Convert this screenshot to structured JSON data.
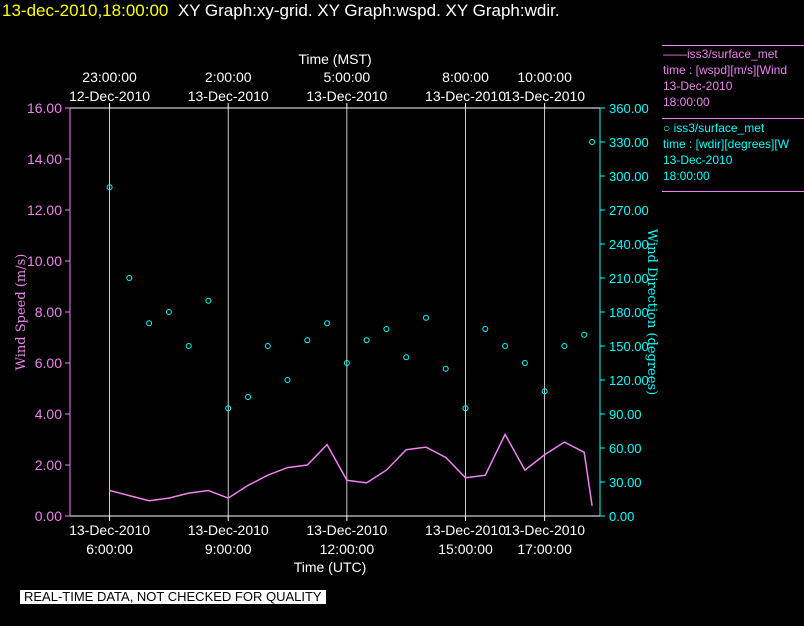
{
  "header": {
    "timestamp": "13-dec-2010,18:00:00",
    "graphs": "XY Graph:xy-grid.  XY Graph:wspd.  XY Graph:wdir."
  },
  "legend": {
    "wspd": {
      "line1": "——iss3/surface_met",
      "line2": "time : [wspd][m/s][Wind",
      "line3": "13-Dec-2010",
      "line4": "18:00:00"
    },
    "wdir": {
      "line1": "○ iss3/surface_met",
      "line2": "time : [wdir][degrees][W",
      "line3": "13-Dec-2010",
      "line4": "18:00:00"
    }
  },
  "footer_note": "REAL-TIME DATA, NOT CHECKED FOR QUALITY",
  "colors": {
    "wspd": "#ee82ee",
    "wdir": "#00ffff",
    "grid": "#ffffff",
    "timestamp": "#ffff00"
  },
  "chart_data": {
    "type": "line",
    "x_units": "hours UTC on 13-Dec-2010",
    "xlim": [
      5.0,
      18.4
    ],
    "top_axis": {
      "label": "Time (MST)",
      "ticks": [
        {
          "x": 6.0,
          "time": "23:00:00",
          "date": "12-Dec-2010"
        },
        {
          "x": 9.0,
          "time": "2:00:00",
          "date": "13-Dec-2010"
        },
        {
          "x": 12.0,
          "time": "5:00:00",
          "date": "13-Dec-2010"
        },
        {
          "x": 15.0,
          "time": "8:00:00",
          "date": "13-Dec-2010"
        },
        {
          "x": 17.0,
          "time": "10:00:00",
          "date": "13-Dec-2010"
        }
      ]
    },
    "bottom_axis": {
      "label": "Time (UTC)",
      "ticks": [
        {
          "x": 6.0,
          "date": "13-Dec-2010",
          "time": "6:00:00"
        },
        {
          "x": 9.0,
          "date": "13-Dec-2010",
          "time": "9:00:00"
        },
        {
          "x": 12.0,
          "date": "13-Dec-2010",
          "time": "12:00:00"
        },
        {
          "x": 15.0,
          "date": "13-Dec-2010",
          "time": "15:00:00"
        },
        {
          "x": 17.0,
          "date": "13-Dec-2010",
          "time": "17:00:00"
        }
      ]
    },
    "left_axis": {
      "label": "Wind Speed (m/s)",
      "ylim": [
        0,
        16
      ],
      "ticks": [
        "0.00",
        "2.00",
        "4.00",
        "6.00",
        "8.00",
        "10.00",
        "12.00",
        "14.00",
        "16.00"
      ]
    },
    "right_axis": {
      "label": "Wind Direction (degrees)",
      "ylim": [
        0,
        360
      ],
      "ticks": [
        "0.00",
        "30.00",
        "60.00",
        "90.00",
        "120.00",
        "150.00",
        "180.00",
        "210.00",
        "240.00",
        "270.00",
        "300.00",
        "330.00",
        "360.00"
      ]
    },
    "grid": true,
    "legend_position": "right",
    "series": [
      {
        "name": "iss3/surface_met time : [wspd][m/s]",
        "axis": "left",
        "style": "line",
        "x": [
          6.0,
          6.5,
          7.0,
          7.5,
          8.0,
          8.5,
          9.0,
          9.5,
          10.0,
          10.5,
          11.0,
          11.5,
          12.0,
          12.5,
          13.0,
          13.5,
          14.0,
          14.5,
          15.0,
          15.5,
          16.0,
          16.5,
          17.0,
          17.5,
          18.0,
          18.2
        ],
        "y": [
          1.0,
          0.8,
          0.6,
          0.7,
          0.9,
          1.0,
          0.7,
          1.2,
          1.6,
          1.9,
          2.0,
          2.8,
          1.4,
          1.3,
          1.8,
          2.6,
          2.7,
          2.3,
          1.5,
          1.6,
          3.2,
          1.8,
          2.4,
          2.9,
          2.5,
          0.4
        ]
      },
      {
        "name": "iss3/surface_met time : [wdir][degrees]",
        "axis": "right",
        "style": "markers",
        "x": [
          6.0,
          6.5,
          7.0,
          7.5,
          8.0,
          8.5,
          9.0,
          9.5,
          10.0,
          10.5,
          11.0,
          11.5,
          12.0,
          12.5,
          13.0,
          13.5,
          14.0,
          14.5,
          15.0,
          15.5,
          16.0,
          16.5,
          17.0,
          17.5,
          18.0,
          18.2
        ],
        "y": [
          290,
          210,
          170,
          180,
          150,
          190,
          95,
          105,
          150,
          120,
          155,
          170,
          135,
          155,
          165,
          140,
          175,
          130,
          95,
          165,
          150,
          135,
          110,
          150,
          160,
          330
        ]
      }
    ]
  }
}
